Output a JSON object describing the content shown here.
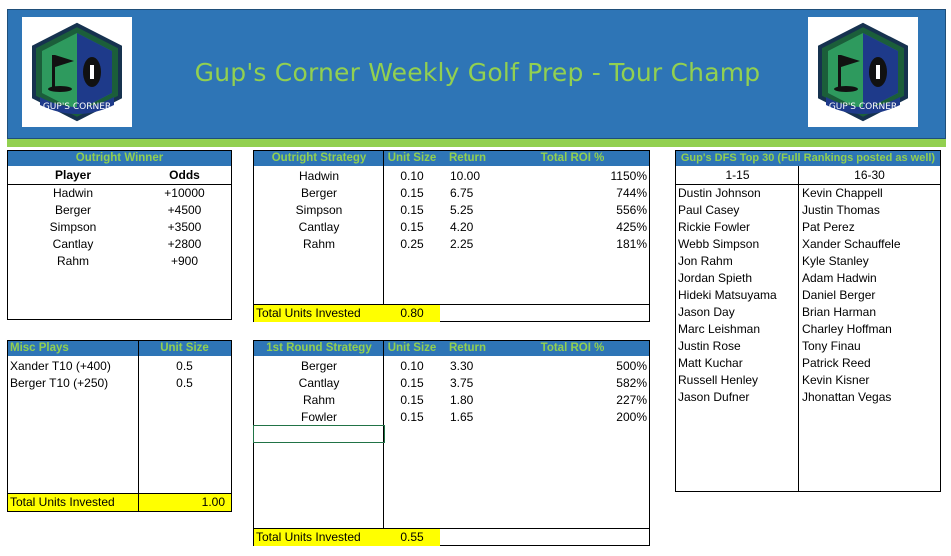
{
  "header": {
    "title": "Gup's Corner Weekly Golf Prep - Tour Champ",
    "logo_text": "GUP'S CORNER"
  },
  "outright_winner": {
    "title": "Outright Winner",
    "col_player": "Player",
    "col_odds": "Odds",
    "rows": [
      {
        "player": "Hadwin",
        "odds": "+10000"
      },
      {
        "player": "Berger",
        "odds": "+4500"
      },
      {
        "player": "Simpson",
        "odds": "+3500"
      },
      {
        "player": "Cantlay",
        "odds": "+2800"
      },
      {
        "player": "Rahm",
        "odds": "+900"
      }
    ]
  },
  "outright_strategy": {
    "title": "Outright Strategy",
    "col_unit": "Unit Size",
    "col_return": "Return",
    "col_roi": "Total ROI %",
    "rows": [
      {
        "player": "Hadwin",
        "unit": "0.10",
        "ret": "10.00",
        "roi": "1150%"
      },
      {
        "player": "Berger",
        "unit": "0.15",
        "ret": "6.75",
        "roi": "744%"
      },
      {
        "player": "Simpson",
        "unit": "0.15",
        "ret": "5.25",
        "roi": "556%"
      },
      {
        "player": "Cantlay",
        "unit": "0.15",
        "ret": "4.20",
        "roi": "425%"
      },
      {
        "player": "Rahm",
        "unit": "0.25",
        "ret": "2.25",
        "roi": "181%"
      }
    ],
    "total_label": "Total Units Invested",
    "total_value": "0.80"
  },
  "misc_plays": {
    "title": "Misc Plays",
    "col_unit": "Unit Size",
    "rows": [
      {
        "play": "Xander T10 (+400)",
        "unit": "0.5"
      },
      {
        "play": "Berger T10 (+250)",
        "unit": "0.5"
      }
    ],
    "total_label": "Total Units Invested",
    "total_value": "1.00"
  },
  "first_round": {
    "title": "1st Round Strategy",
    "col_unit": "Unit Size",
    "col_return": "Return",
    "col_roi": "Total ROI %",
    "rows": [
      {
        "player": "Berger",
        "unit": "0.10",
        "ret": "3.30",
        "roi": "500%"
      },
      {
        "player": "Cantlay",
        "unit": "0.15",
        "ret": "3.75",
        "roi": "582%"
      },
      {
        "player": "Rahm",
        "unit": "0.15",
        "ret": "1.80",
        "roi": "227%"
      },
      {
        "player": "Fowler",
        "unit": "0.15",
        "ret": "1.65",
        "roi": "200%"
      }
    ],
    "total_label": "Total Units Invested",
    "total_value": "0.55"
  },
  "dfs": {
    "title": "Gup's DFS Top 30 (Full Rankings posted as well)",
    "col1": "1-15",
    "col2": "16-30",
    "left": [
      "Dustin Johnson",
      "Paul Casey",
      "Rickie Fowler",
      "Webb Simpson",
      "Jon Rahm",
      "Jordan Spieth",
      "Hideki Matsuyama",
      "Jason Day",
      "Marc Leishman",
      "Justin Rose",
      "Matt Kuchar",
      "Russell Henley",
      "Jason Dufner"
    ],
    "right": [
      "Kevin Chappell",
      "Justin Thomas",
      "Pat Perez",
      "Xander Schauffele",
      "Kyle Stanley",
      "Adam Hadwin",
      "Daniel Berger",
      "Brian Harman",
      "Charley Hoffman",
      "Tony Finau",
      "Patrick Reed",
      "Kevin Kisner",
      "Jhonattan Vegas"
    ]
  },
  "colors": {
    "header_blue": "#2e75b6",
    "accent_green": "#92d050",
    "total_yellow": "#ffff00"
  }
}
